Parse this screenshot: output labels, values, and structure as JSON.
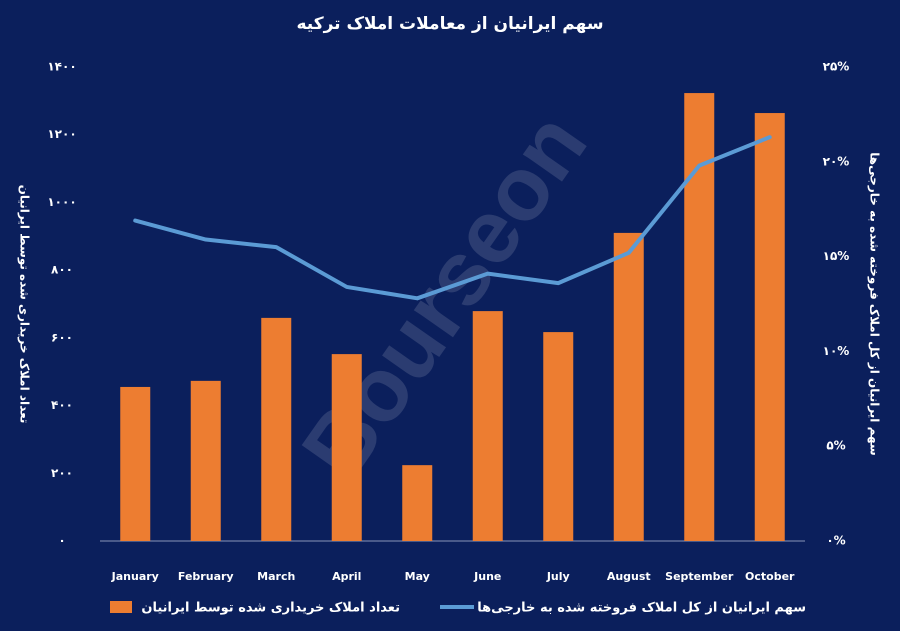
{
  "chart_data": {
    "type": "bar-line",
    "title": "سهم ایرانیان از معاملات املاک ترکیه",
    "watermark": "Bourseon",
    "y_label": "تعداد املاک خریداری شده توسط ایرانیان",
    "y2_label": "سهم ایرانیان از کل املاک فروخته شده به خارجی‌ها",
    "categories": [
      "January",
      "February",
      "March",
      "April",
      "May",
      "June",
      "July",
      "August",
      "September",
      "October"
    ],
    "series": [
      {
        "name": "تعداد املاک خریداری شده توسط ایرانیان",
        "type": "bar",
        "color": "#ed7d31",
        "values": [
          455,
          473,
          659,
          552,
          224,
          679,
          617,
          910,
          1323,
          1264
        ]
      },
      {
        "name": "سهم ایرانیان از کل املاک فروخته شده به خارجی‌ها",
        "type": "line",
        "color": "#5b9bd5",
        "axis": "y2",
        "values": [
          16.9,
          15.9,
          15.5,
          13.4,
          12.8,
          14.1,
          13.6,
          15.2,
          19.8,
          21.3
        ]
      }
    ],
    "ylim": [
      0,
      1400
    ],
    "yticks": [
      {
        "value": 0,
        "label": "۰"
      },
      {
        "value": 200,
        "label": "۲۰۰"
      },
      {
        "value": 400,
        "label": "۴۰۰"
      },
      {
        "value": 600,
        "label": "۶۰۰"
      },
      {
        "value": 800,
        "label": "۸۰۰"
      },
      {
        "value": 1000,
        "label": "۱۰۰۰"
      },
      {
        "value": 1200,
        "label": "۱۲۰۰"
      },
      {
        "value": 1400,
        "label": "۱۴۰۰"
      }
    ],
    "y2lim": [
      0,
      25
    ],
    "y2ticks": [
      {
        "value": 0,
        "label": "۰%"
      },
      {
        "value": 5,
        "label": "۵%"
      },
      {
        "value": 10,
        "label": "۱۰%"
      },
      {
        "value": 15,
        "label": "۱۵%"
      },
      {
        "value": 20,
        "label": "۲۰%"
      },
      {
        "value": 25,
        "label": "۲۵%"
      }
    ],
    "grid": false
  }
}
